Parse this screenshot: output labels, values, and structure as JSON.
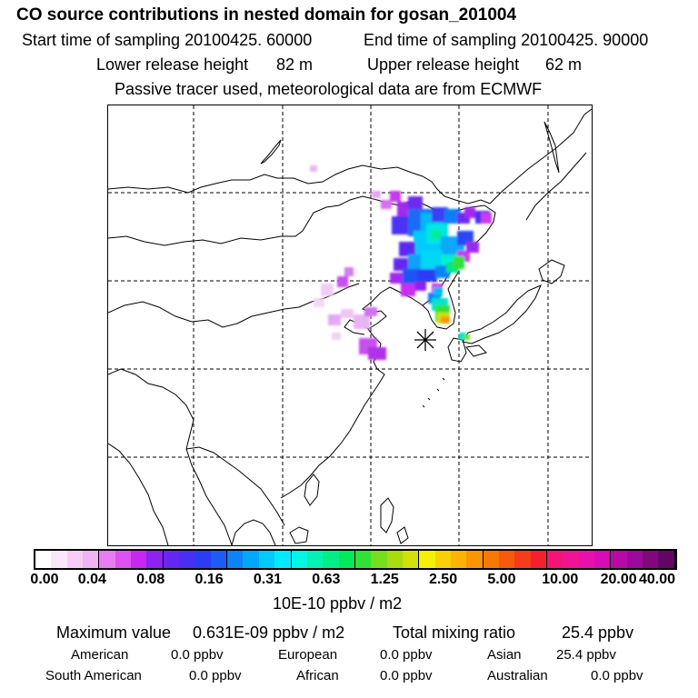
{
  "header": {
    "title": "CO  source contributions in nested domain for gosan_201004",
    "start_label": "Start time of sampling 20100425. 60000",
    "end_label": "End time of sampling 20100425. 90000",
    "lower_label": "Lower release height",
    "lower_value": "82 m",
    "upper_label": "Upper release height",
    "upper_value": "62 m",
    "note": "Passive tracer used, meteorological data are from ECMWF"
  },
  "map": {
    "coast_color": "#000000",
    "grid_color": "#000000",
    "receptor_marker": "asterisk-icon"
  },
  "colorbar": {
    "ticks": [
      "0.00",
      "0.04",
      "0.08",
      "0.16",
      "0.31",
      "0.63",
      "1.25",
      "2.50",
      "5.00",
      "10.00",
      "20.00",
      "40.00"
    ],
    "colors": [
      "#ffffff",
      "#fbe6fb",
      "#f6cdf6",
      "#f0b3f4",
      "#e97cf0",
      "#dc52ee",
      "#c727f0",
      "#8c23f0",
      "#6626f2",
      "#4a2ef4",
      "#2c3cf4",
      "#1b5cf6",
      "#0e82f8",
      "#00a8fa",
      "#00cafc",
      "#00ecfe",
      "#00f6e6",
      "#00f2b4",
      "#00ee88",
      "#00e85c",
      "#30e236",
      "#74de1e",
      "#a8dc10",
      "#d0e008",
      "#f6f000",
      "#fad000",
      "#fcb400",
      "#fc9600",
      "#fa7800",
      "#f85a0c",
      "#f63c1a",
      "#f42030",
      "#f41476",
      "#f01494",
      "#e810ac",
      "#d80cb4",
      "#b808a8",
      "#9c0898",
      "#82067e",
      "#660466"
    ],
    "unit": "10E-10 ppbv / m2"
  },
  "summary": {
    "max_label": "Maximum value",
    "max_value": "0.631E-09 ppbv / m2",
    "total_label": "Total mixing ratio",
    "total_value": "25.4 ppbv",
    "regions": [
      {
        "name": "American",
        "value": "0.0 ppbv"
      },
      {
        "name": "European",
        "value": "0.0 ppbv"
      },
      {
        "name": "Asian",
        "value": "25.4 ppbv"
      },
      {
        "name": "South American",
        "value": "0.0 ppbv"
      },
      {
        "name": "African",
        "value": "0.0 ppbv"
      },
      {
        "name": "Australian",
        "value": "0.0 ppbv"
      }
    ]
  }
}
